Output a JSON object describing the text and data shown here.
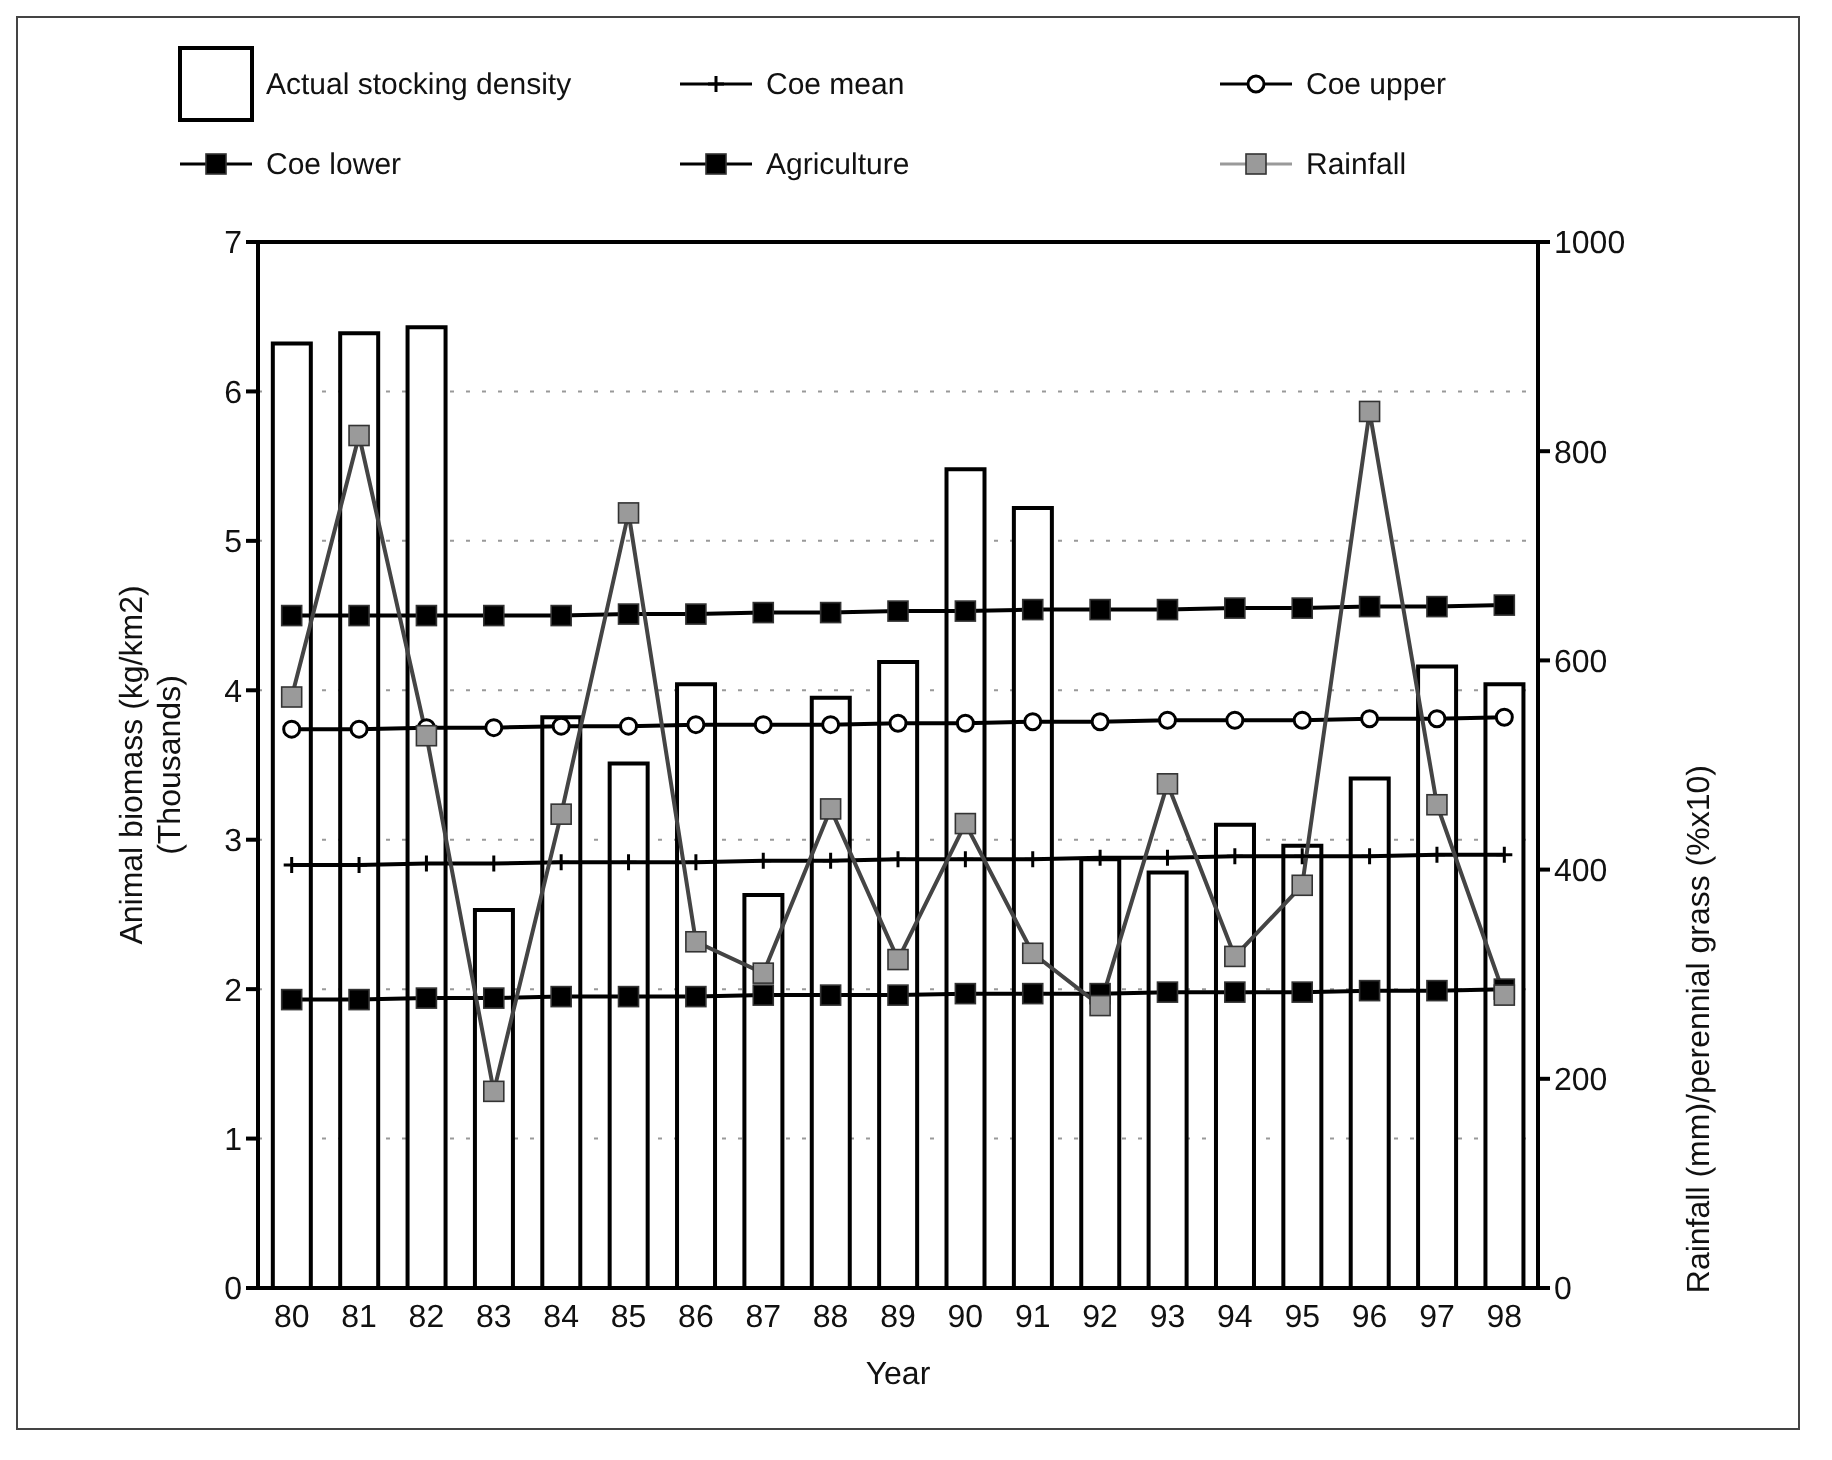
{
  "chart_data": {
    "type": "bar",
    "xlabel": "Year",
    "ylabel": "Animal biomass (kg/km2)\n(Thousands)",
    "y2label": "Rainfall (mm)/perennial grass (%x10)",
    "categories": [
      "80",
      "81",
      "82",
      "83",
      "84",
      "85",
      "86",
      "87",
      "88",
      "89",
      "90",
      "91",
      "92",
      "93",
      "94",
      "95",
      "96",
      "97",
      "98"
    ],
    "series": [
      {
        "name": "Actual stocking density",
        "color": "#ffffff",
        "values": [
          6.32,
          6.39,
          6.43,
          2.53,
          3.82,
          3.51,
          4.04,
          2.63,
          3.95,
          4.19,
          5.48,
          5.22,
          2.87,
          2.78,
          3.1,
          2.96,
          3.41,
          4.16,
          4.04
        ]
      },
      {
        "name": "Coe mean",
        "type": "line",
        "marker": "cross",
        "color": "#000000",
        "values": [
          2.83,
          2.83,
          2.84,
          2.84,
          2.85,
          2.85,
          2.85,
          2.86,
          2.86,
          2.87,
          2.87,
          2.87,
          2.88,
          2.88,
          2.89,
          2.89,
          2.89,
          2.9,
          2.9
        ]
      },
      {
        "name": "Coe upper",
        "type": "line",
        "marker": "circle",
        "color": "#000000",
        "values": [
          3.74,
          3.74,
          3.75,
          3.75,
          3.76,
          3.76,
          3.77,
          3.77,
          3.77,
          3.78,
          3.78,
          3.79,
          3.79,
          3.8,
          3.8,
          3.8,
          3.81,
          3.81,
          3.82
        ]
      },
      {
        "name": "Coe lower",
        "type": "line",
        "marker": "square",
        "color": "#000000",
        "values": [
          1.93,
          1.93,
          1.94,
          1.94,
          1.95,
          1.95,
          1.95,
          1.96,
          1.96,
          1.96,
          1.97,
          1.97,
          1.97,
          1.98,
          1.98,
          1.98,
          1.99,
          1.99,
          2.0
        ]
      },
      {
        "name": "Agriculture",
        "type": "line",
        "marker": "square",
        "color": "#000000",
        "values": [
          4.5,
          4.5,
          4.5,
          4.5,
          4.5,
          4.51,
          4.51,
          4.52,
          4.52,
          4.53,
          4.53,
          4.54,
          4.54,
          4.54,
          4.55,
          4.55,
          4.56,
          4.56,
          4.57
        ]
      },
      {
        "name": "Rainfall",
        "type": "line",
        "marker": "square",
        "axis": "y2",
        "color": "#9a9a9a",
        "values": [
          565,
          815,
          528,
          188,
          453,
          741,
          331,
          301,
          458,
          314,
          444,
          320,
          270,
          482,
          317,
          385,
          838,
          462,
          280
        ]
      }
    ],
    "ylim": [
      0,
      7
    ],
    "yticks": [
      0,
      1,
      2,
      3,
      4,
      5,
      6,
      7
    ],
    "y2lim": [
      0,
      1000
    ],
    "y2ticks": [
      0,
      200,
      400,
      600,
      800,
      1000
    ],
    "grid": "y",
    "legend": "top"
  }
}
